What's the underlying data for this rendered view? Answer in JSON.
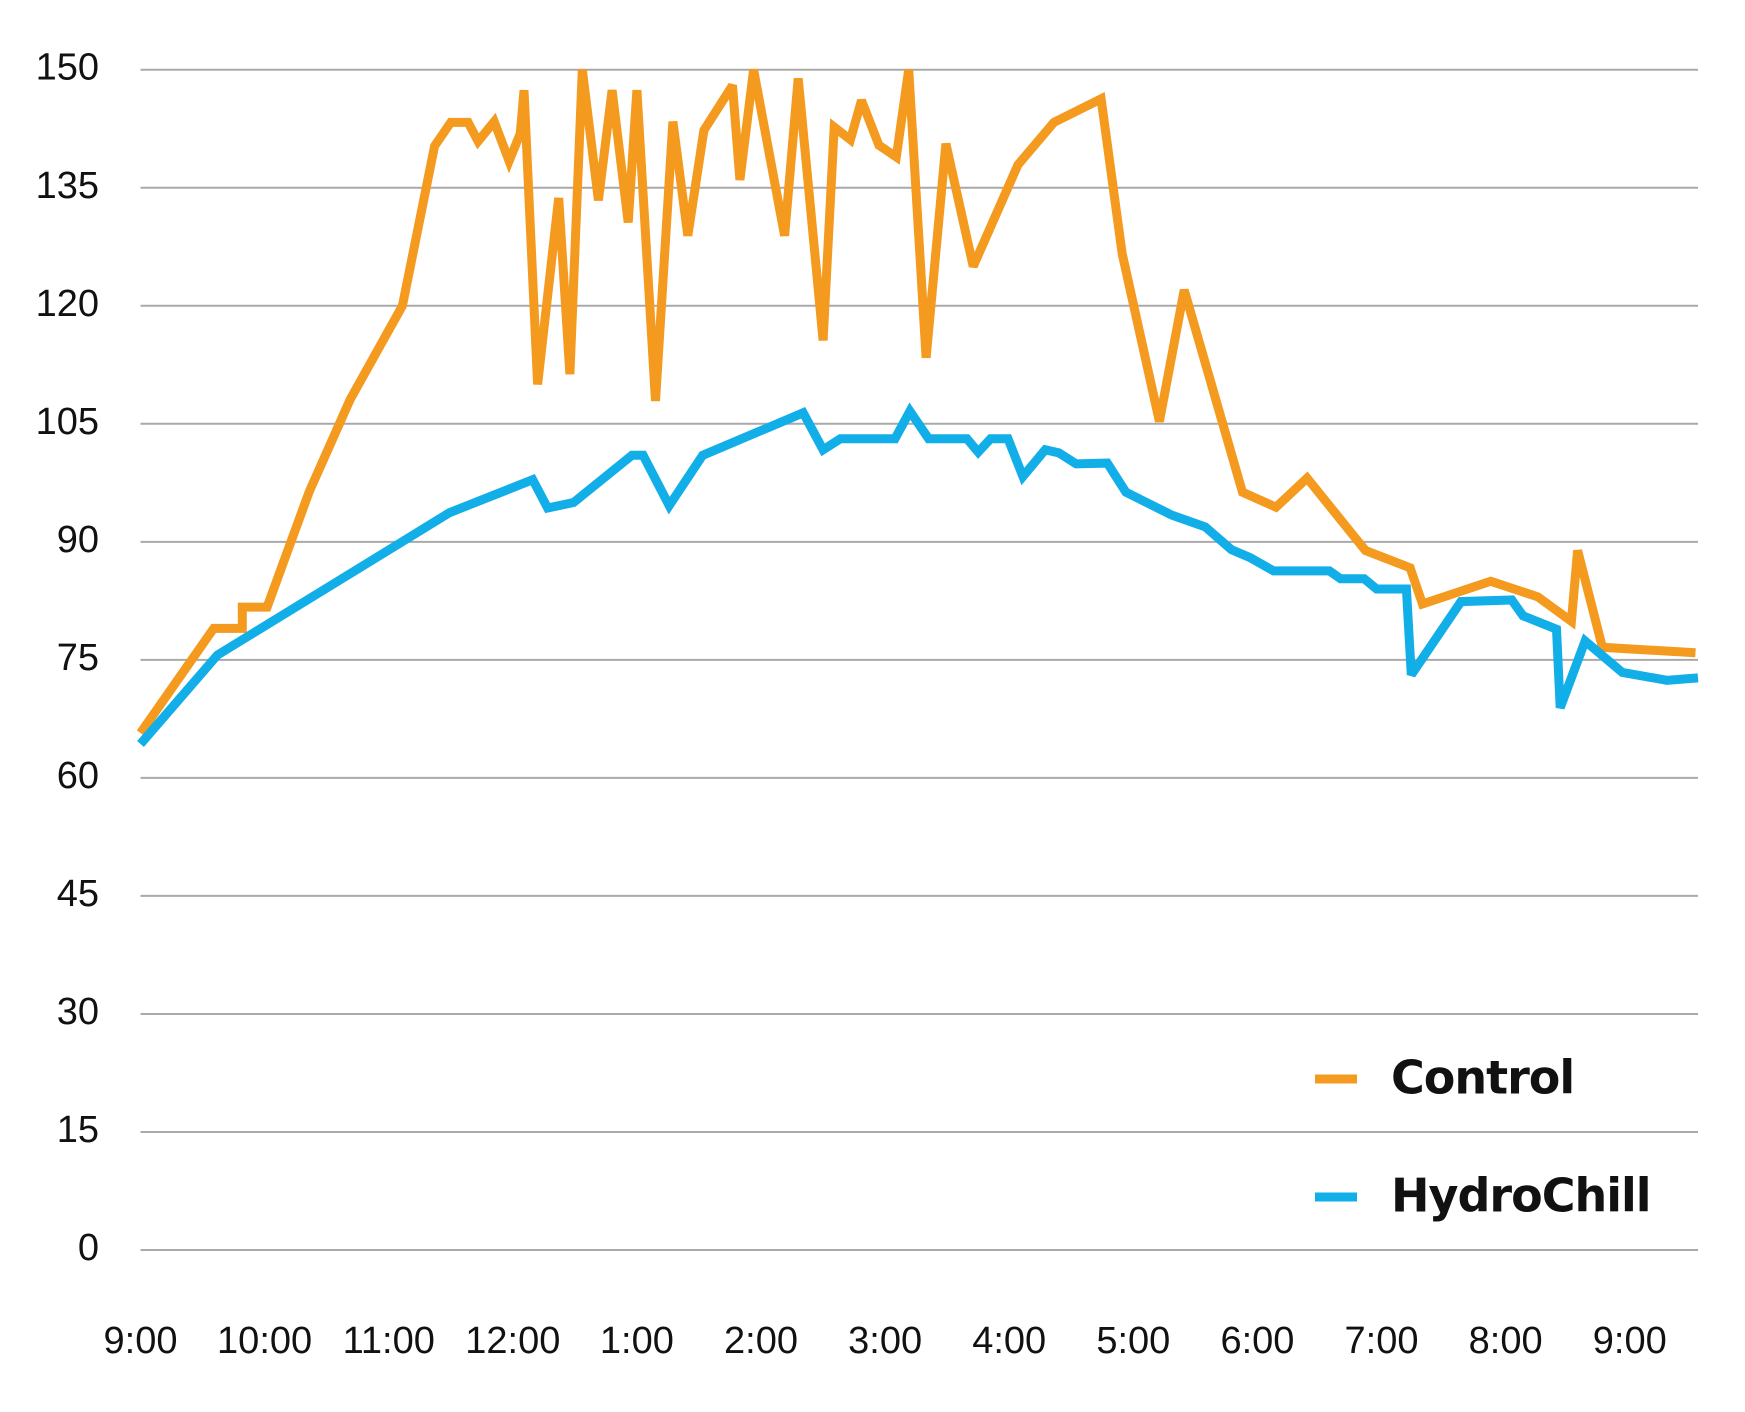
{
  "chart_data": {
    "type": "line",
    "xlim": [
      9,
      21.55
    ],
    "ylim": [
      0,
      150
    ],
    "yticks": [
      0,
      15,
      30,
      45,
      60,
      75,
      90,
      105,
      120,
      135,
      150
    ],
    "xticks": [
      {
        "value": 9,
        "label": "9:00"
      },
      {
        "value": 10,
        "label": "10:00"
      },
      {
        "value": 11,
        "label": "11:00"
      },
      {
        "value": 12,
        "label": "12:00"
      },
      {
        "value": 13,
        "label": "1:00"
      },
      {
        "value": 14,
        "label": "2:00"
      },
      {
        "value": 15,
        "label": "3:00"
      },
      {
        "value": 16,
        "label": "4:00"
      },
      {
        "value": 17,
        "label": "5:00"
      },
      {
        "value": 18,
        "label": "6:00"
      },
      {
        "value": 19,
        "label": "7:00"
      },
      {
        "value": 20,
        "label": "8:00"
      },
      {
        "value": 21,
        "label": "9:00"
      }
    ],
    "grid": true,
    "legend": "lower right",
    "series": [
      {
        "name": "Control",
        "color": "#f39a1f",
        "x": [
          9.0,
          9.59,
          9.82,
          9.82,
          10.02,
          10.36,
          10.69,
          11.11,
          11.37,
          11.5,
          11.64,
          11.72,
          11.85,
          11.97,
          12.06,
          12.09,
          12.2,
          12.37,
          12.46,
          12.56,
          12.69,
          12.8,
          12.93,
          13.0,
          13.15,
          13.29,
          13.41,
          13.54,
          13.77,
          13.83,
          13.94,
          14.19,
          14.3,
          14.5,
          14.59,
          14.72,
          14.81,
          14.95,
          15.09,
          15.19,
          15.33,
          15.49,
          15.71,
          16.07,
          16.36,
          16.74,
          16.91,
          17.21,
          17.41,
          17.88,
          18.15,
          18.4,
          18.87,
          19.23,
          19.33,
          19.88,
          20.26,
          20.53,
          20.58,
          20.78,
          21.53
        ],
        "values": [
          65.7,
          79,
          79,
          81.7,
          81.7,
          96.4,
          108.1,
          120,
          140.3,
          143.3,
          143.3,
          140.9,
          143.4,
          138.4,
          141.9,
          147.4,
          110,
          133.7,
          111.3,
          150,
          133.4,
          147.4,
          130.6,
          147.4,
          107.9,
          143.4,
          128.9,
          142.3,
          148,
          136,
          150,
          128.9,
          148.9,
          115.6,
          142.7,
          141.1,
          146.1,
          140.4,
          138.9,
          150,
          113.4,
          140.6,
          125,
          137.9,
          143.3,
          146.3,
          126.6,
          105.3,
          122,
          96.3,
          94.4,
          98.1,
          88.9,
          86.7,
          82.1,
          85,
          83,
          79.9,
          88.9,
          76.6,
          75.9
        ]
      },
      {
        "name": "HydroChill",
        "color": "#12aee8",
        "x": [
          9.0,
          9.62,
          11.49,
          12.16,
          12.28,
          12.49,
          12.96,
          13.05,
          13.26,
          13.53,
          14.34,
          14.5,
          14.64,
          15.08,
          15.2,
          15.35,
          15.66,
          15.75,
          15.85,
          15.99,
          16.11,
          16.29,
          16.4,
          16.54,
          16.79,
          16.94,
          17.31,
          17.58,
          17.79,
          17.94,
          18.13,
          18.58,
          18.67,
          18.86,
          18.96,
          19.2,
          19.24,
          19.64,
          20.05,
          20.14,
          20.41,
          20.44,
          20.64,
          20.94,
          21.3,
          21.55
        ],
        "values": [
          64.3,
          75.6,
          93.7,
          97.9,
          94.3,
          95,
          101,
          101,
          94.6,
          101,
          106.4,
          101.7,
          103.1,
          103.1,
          106.6,
          103.1,
          103.1,
          101.4,
          103.1,
          103.1,
          98.3,
          101.7,
          101.3,
          99.9,
          100,
          96.3,
          93.4,
          91.9,
          89,
          88,
          86.3,
          86.3,
          85.3,
          85.3,
          84,
          84,
          73.1,
          82.4,
          82.6,
          80.6,
          78.9,
          68.9,
          77.4,
          73.4,
          72.4,
          72.7
        ]
      }
    ]
  }
}
